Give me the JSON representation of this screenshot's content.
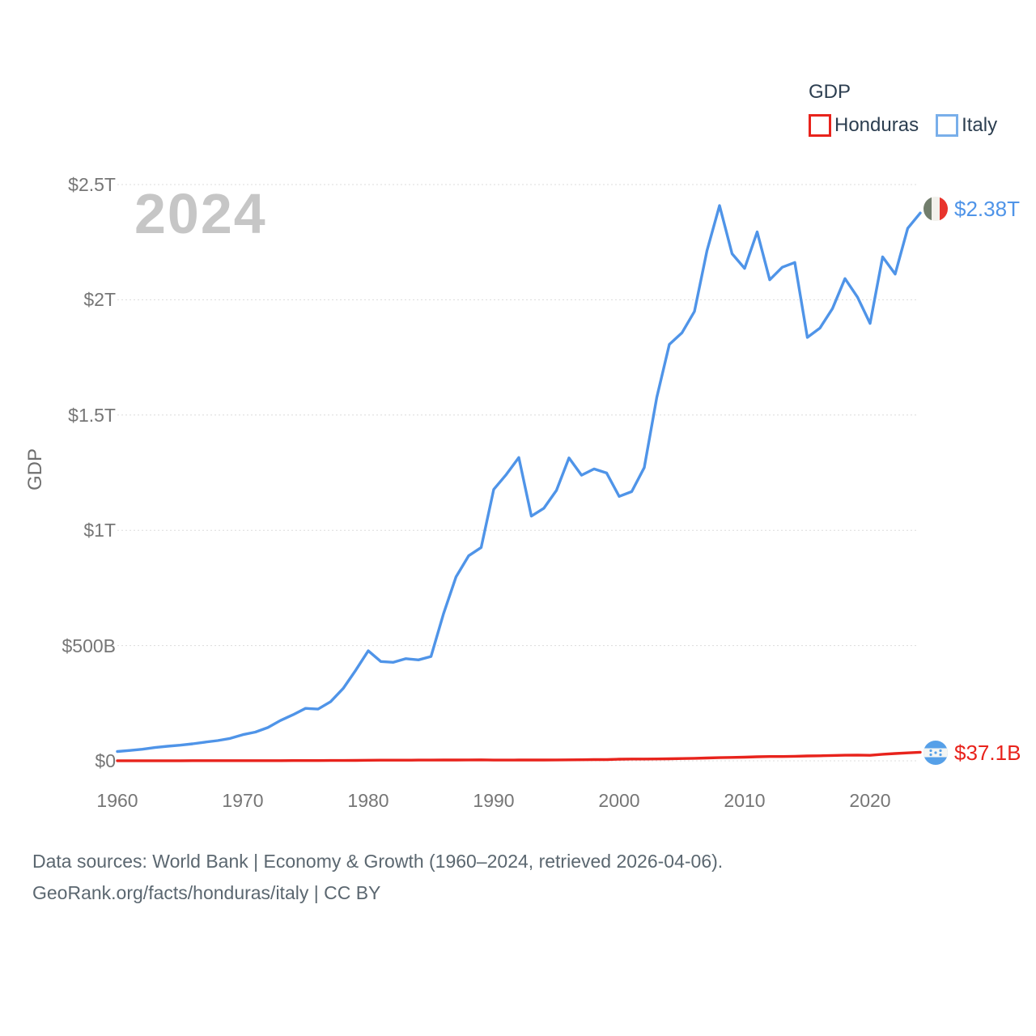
{
  "watermark": "2024",
  "legend": {
    "title": "GDP",
    "items": [
      {
        "label": "Honduras",
        "color": "#e8231c"
      },
      {
        "label": "Italy",
        "color": "#79afea"
      }
    ]
  },
  "axis": {
    "y_title": "GDP",
    "y_ticks": [
      "$0",
      "$500B",
      "$1T",
      "$1.5T",
      "$2T",
      "$2.5T"
    ],
    "x_ticks": [
      "1960",
      "1970",
      "1980",
      "1990",
      "2000",
      "2010",
      "2020"
    ]
  },
  "end_labels": {
    "italy": {
      "value": "$2.38T",
      "color": "#4f94e8",
      "flag": "italy-flag-icon"
    },
    "honduras": {
      "value": "$37.1B",
      "color": "#e8231c",
      "flag": "honduras-flag-icon"
    }
  },
  "footer": {
    "line1": "Data sources: World Bank | Economy & Growth (1960–2024, retrieved 2026-04-06).",
    "line2": "GeoRank.org/facts/honduras/italy | CC BY"
  },
  "chart_data": {
    "type": "line",
    "title": "GDP",
    "ylabel": "GDP",
    "y_unit": "billion USD",
    "ylim": [
      0,
      2500
    ],
    "grid": true,
    "legend_position": "top-right",
    "x_tick_years": [
      1960,
      1970,
      1980,
      1990,
      2000,
      2010,
      2020
    ],
    "y_tick_values": [
      0,
      500,
      1000,
      1500,
      2000,
      2500
    ],
    "x": [
      1960,
      1961,
      1962,
      1963,
      1964,
      1965,
      1966,
      1967,
      1968,
      1969,
      1970,
      1971,
      1972,
      1973,
      1974,
      1975,
      1976,
      1977,
      1978,
      1979,
      1980,
      1981,
      1982,
      1983,
      1984,
      1985,
      1986,
      1987,
      1988,
      1989,
      1990,
      1991,
      1992,
      1993,
      1994,
      1995,
      1996,
      1997,
      1998,
      1999,
      2000,
      2001,
      2002,
      2003,
      2004,
      2005,
      2006,
      2007,
      2008,
      2009,
      2010,
      2011,
      2012,
      2013,
      2014,
      2015,
      2016,
      2017,
      2018,
      2019,
      2020,
      2021,
      2022,
      2023,
      2024
    ],
    "series": [
      {
        "name": "Honduras",
        "color": "#e8231c",
        "end_value_label": "$37.1B",
        "values": [
          0.34,
          0.36,
          0.39,
          0.41,
          0.46,
          0.51,
          0.55,
          0.6,
          0.64,
          0.67,
          0.65,
          0.68,
          0.72,
          0.83,
          0.94,
          0.97,
          1.13,
          1.37,
          1.58,
          1.84,
          2.57,
          2.68,
          2.77,
          2.87,
          3.06,
          3.26,
          3.41,
          3.66,
          3.94,
          4.23,
          3.05,
          3.07,
          3.42,
          3.5,
          3.43,
          3.91,
          4.07,
          4.66,
          5.2,
          5.37,
          7.1,
          7.57,
          7.77,
          8.14,
          8.77,
          9.67,
          10.84,
          12.28,
          13.79,
          14.59,
          15.84,
          17.73,
          18.53,
          18.5,
          19.76,
          20.98,
          21.72,
          23.14,
          24.07,
          25.1,
          23.83,
          28.49,
          31.72,
          34.4,
          37.1
        ]
      },
      {
        "name": "Italy",
        "color": "#4f94e8",
        "end_value_label": "$2.38T",
        "values": [
          40.4,
          44.8,
          50.2,
          57.5,
          63.2,
          67.8,
          73.6,
          81.1,
          87.9,
          97.1,
          113.4,
          124.6,
          144.4,
          174.9,
          199.8,
          227.4,
          224.3,
          256.6,
          314.0,
          392.9,
          477.3,
          430.7,
          427.3,
          443.0,
          437.9,
          452.7,
          638.5,
          798.4,
          889.4,
          925.5,
          1177.3,
          1242.0,
          1315.8,
          1061.4,
          1095.7,
          1173.0,
          1313.9,
          1239.1,
          1266.3,
          1248.6,
          1147.2,
          1167.9,
          1272.2,
          1577.2,
          1806.6,
          1856.5,
          1949.4,
          2213.1,
          2408.7,
          2199.9,
          2136.1,
          2294.6,
          2086.9,
          2141.2,
          2162.0,
          1836.6,
          1877.1,
          1961.8,
          2091.9,
          2011.3,
          1897.5,
          2186.2,
          2111.6,
          2310.0,
          2376.5
        ]
      }
    ]
  }
}
